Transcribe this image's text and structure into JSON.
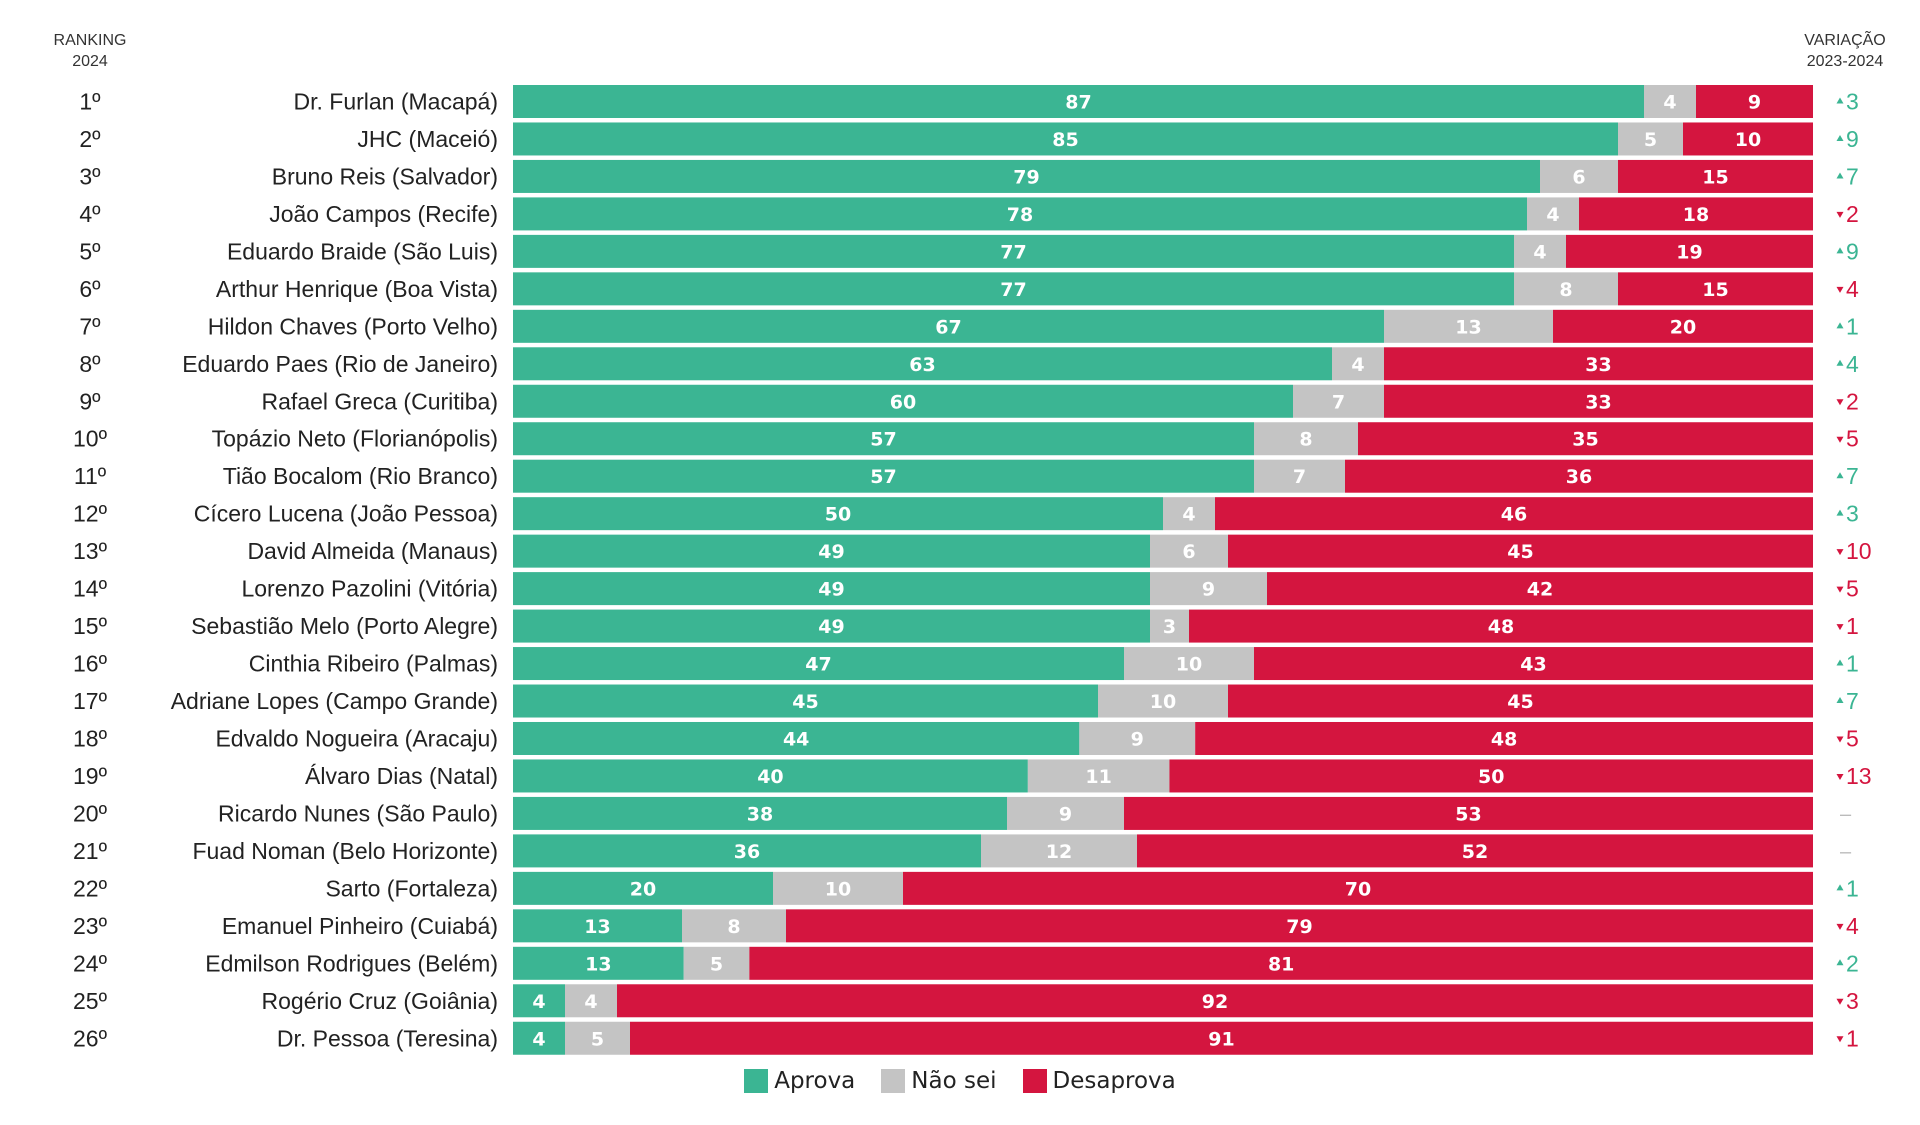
{
  "header": {
    "ranking_line1": "RANKING",
    "ranking_line2": "2024",
    "variation_line1": "VARIAÇÃO",
    "variation_line2": "2023-2024"
  },
  "legend": {
    "aprova": "Aprova",
    "nao_sei": "Não sei",
    "desaprova": "Desaprova"
  },
  "colors": {
    "aprova": "#3bb593",
    "nao_sei": "#c4c4c4",
    "desaprova": "#d4153f",
    "up": "#3bb593",
    "down": "#d4153f",
    "neutral": "#bbbbbb"
  },
  "chart_data": {
    "type": "bar",
    "orientation": "horizontal-stacked-100",
    "title": "",
    "xlabel": "",
    "ylabel": "",
    "xlim": [
      0,
      100
    ],
    "series_names": [
      "Aprova",
      "Não sei",
      "Desaprova"
    ],
    "rows": [
      {
        "rank": "1º",
        "name": "Dr. Furlan (Macapá)",
        "aprova": 87,
        "nao_sei": 4,
        "desaprova": 9,
        "variation": "3",
        "direction": "up"
      },
      {
        "rank": "2º",
        "name": "JHC (Maceió)",
        "aprova": 85,
        "nao_sei": 5,
        "desaprova": 10,
        "variation": "9",
        "direction": "up"
      },
      {
        "rank": "3º",
        "name": "Bruno Reis (Salvador)",
        "aprova": 79,
        "nao_sei": 6,
        "desaprova": 15,
        "variation": "7",
        "direction": "up"
      },
      {
        "rank": "4º",
        "name": "João Campos (Recife)",
        "aprova": 78,
        "nao_sei": 4,
        "desaprova": 18,
        "variation": "2",
        "direction": "down"
      },
      {
        "rank": "5º",
        "name": "Eduardo Braide (São Luis)",
        "aprova": 77,
        "nao_sei": 4,
        "desaprova": 19,
        "variation": "9",
        "direction": "up"
      },
      {
        "rank": "6º",
        "name": "Arthur Henrique (Boa Vista)",
        "aprova": 77,
        "nao_sei": 8,
        "desaprova": 15,
        "variation": "4",
        "direction": "down"
      },
      {
        "rank": "7º",
        "name": "Hildon Chaves (Porto Velho)",
        "aprova": 67,
        "nao_sei": 13,
        "desaprova": 20,
        "variation": "1",
        "direction": "up"
      },
      {
        "rank": "8º",
        "name": "Eduardo Paes (Rio de Janeiro)",
        "aprova": 63,
        "nao_sei": 4,
        "desaprova": 33,
        "variation": "4",
        "direction": "up"
      },
      {
        "rank": "9º",
        "name": "Rafael Greca (Curitiba)",
        "aprova": 60,
        "nao_sei": 7,
        "desaprova": 33,
        "variation": "2",
        "direction": "down"
      },
      {
        "rank": "10º",
        "name": "Topázio Neto (Florianópolis)",
        "aprova": 57,
        "nao_sei": 8,
        "desaprova": 35,
        "variation": "5",
        "direction": "down"
      },
      {
        "rank": "11º",
        "name": "Tião Bocalom (Rio Branco)",
        "aprova": 57,
        "nao_sei": 7,
        "desaprova": 36,
        "variation": "7",
        "direction": "up"
      },
      {
        "rank": "12º",
        "name": "Cícero Lucena (João Pessoa)",
        "aprova": 50,
        "nao_sei": 4,
        "desaprova": 46,
        "variation": "3",
        "direction": "up"
      },
      {
        "rank": "13º",
        "name": "David Almeida (Manaus)",
        "aprova": 49,
        "nao_sei": 6,
        "desaprova": 45,
        "variation": "10",
        "direction": "down"
      },
      {
        "rank": "14º",
        "name": "Lorenzo Pazolini (Vitória)",
        "aprova": 49,
        "nao_sei": 9,
        "desaprova": 42,
        "variation": "5",
        "direction": "down"
      },
      {
        "rank": "15º",
        "name": "Sebastião Melo (Porto Alegre)",
        "aprova": 49,
        "nao_sei": 3,
        "desaprova": 48,
        "variation": "1",
        "direction": "down"
      },
      {
        "rank": "16º",
        "name": "Cinthia Ribeiro (Palmas)",
        "aprova": 47,
        "nao_sei": 10,
        "desaprova": 43,
        "variation": "1",
        "direction": "up"
      },
      {
        "rank": "17º",
        "name": "Adriane Lopes (Campo Grande)",
        "aprova": 45,
        "nao_sei": 10,
        "desaprova": 45,
        "variation": "7",
        "direction": "up"
      },
      {
        "rank": "18º",
        "name": "Edvaldo Nogueira (Aracaju)",
        "aprova": 44,
        "nao_sei": 9,
        "desaprova": 48,
        "variation": "5",
        "direction": "down"
      },
      {
        "rank": "19º",
        "name": "Álvaro Dias (Natal)",
        "aprova": 40,
        "nao_sei": 11,
        "desaprova": 50,
        "variation": "13",
        "direction": "down"
      },
      {
        "rank": "20º",
        "name": "Ricardo Nunes (São Paulo)",
        "aprova": 38,
        "nao_sei": 9,
        "desaprova": 53,
        "variation": "–",
        "direction": "none"
      },
      {
        "rank": "21º",
        "name": "Fuad Noman (Belo Horizonte)",
        "aprova": 36,
        "nao_sei": 12,
        "desaprova": 52,
        "variation": "–",
        "direction": "none"
      },
      {
        "rank": "22º",
        "name": "Sarto (Fortaleza)",
        "aprova": 20,
        "nao_sei": 10,
        "desaprova": 70,
        "variation": "1",
        "direction": "up"
      },
      {
        "rank": "23º",
        "name": "Emanuel Pinheiro (Cuiabá)",
        "aprova": 13,
        "nao_sei": 8,
        "desaprova": 79,
        "variation": "4",
        "direction": "down"
      },
      {
        "rank": "24º",
        "name": "Edmilson Rodrigues (Belém)",
        "aprova": 13,
        "nao_sei": 5,
        "desaprova": 81,
        "variation": "2",
        "direction": "up"
      },
      {
        "rank": "25º",
        "name": "Rogério Cruz (Goiânia)",
        "aprova": 4,
        "nao_sei": 4,
        "desaprova": 92,
        "variation": "3",
        "direction": "down"
      },
      {
        "rank": "26º",
        "name": "Dr. Pessoa (Teresina)",
        "aprova": 4,
        "nao_sei": 5,
        "desaprova": 91,
        "variation": "1",
        "direction": "down"
      }
    ]
  }
}
